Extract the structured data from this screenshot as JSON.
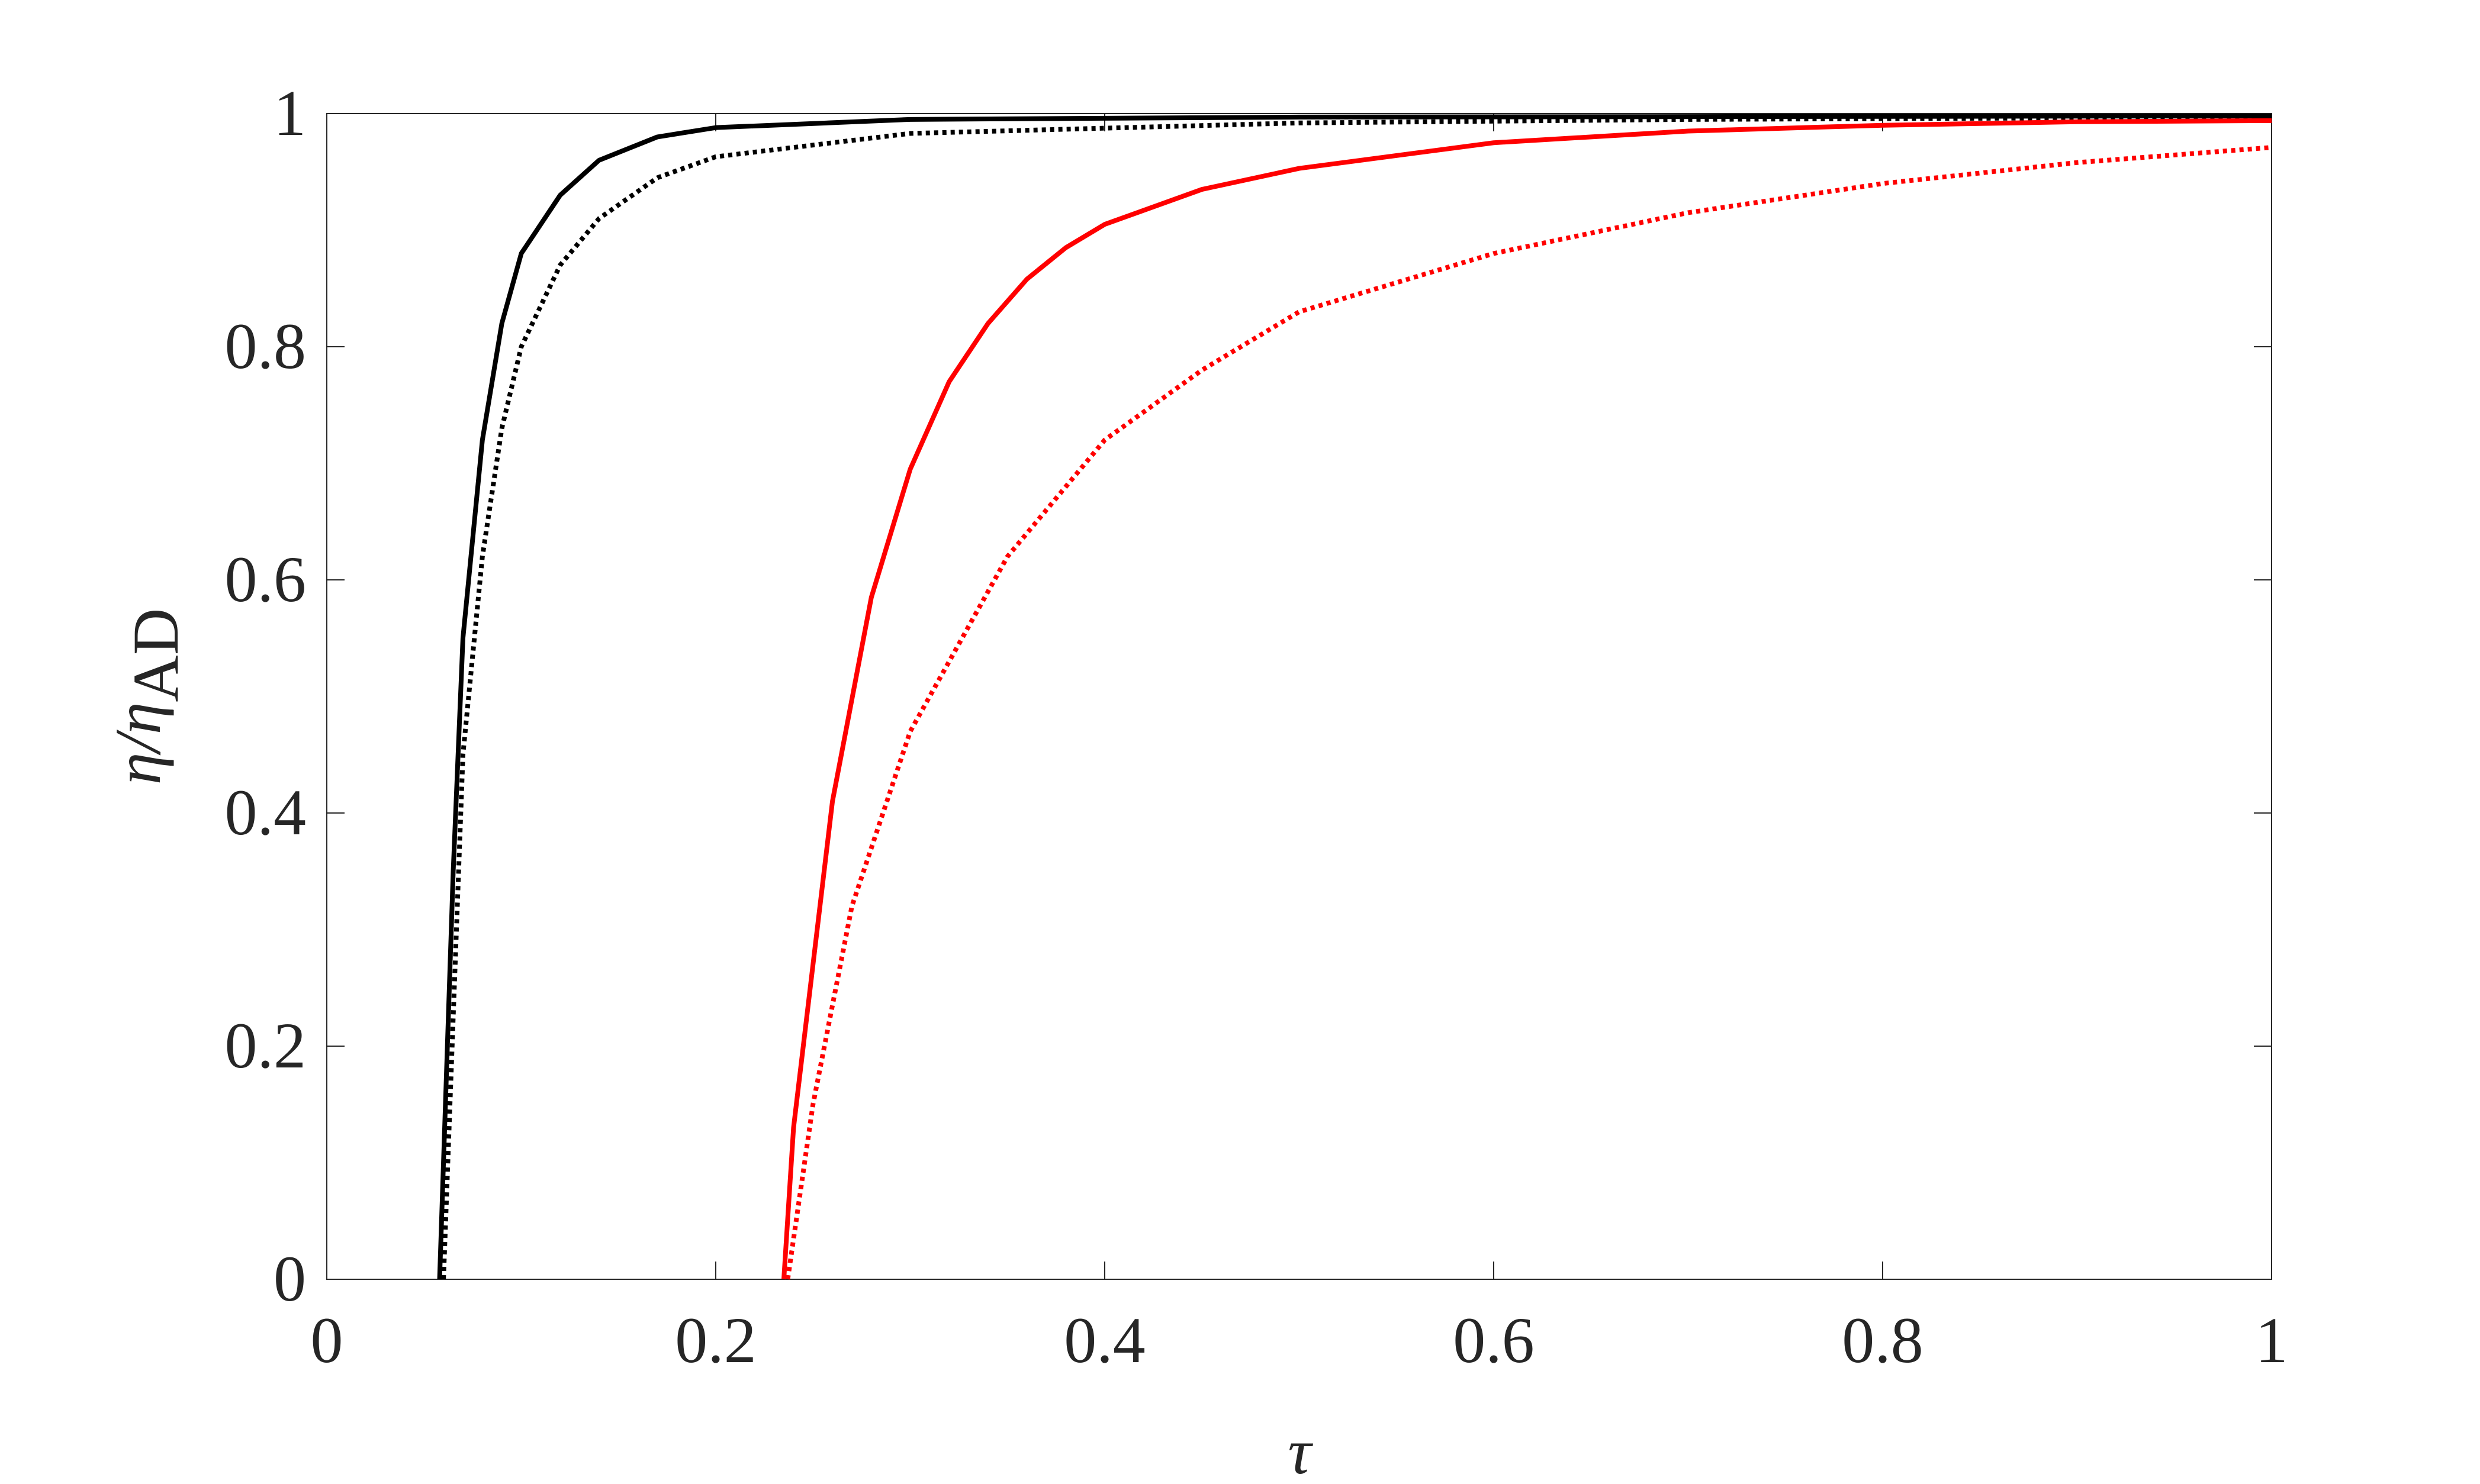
{
  "chart_data": {
    "type": "line",
    "xlabel": "τ",
    "ylabel": "η/η",
    "ylabel_subscript": "AD",
    "xlim": [
      0,
      1
    ],
    "ylim": [
      0,
      1
    ],
    "xticks": [
      0,
      0.2,
      0.4,
      0.6,
      0.8,
      1
    ],
    "yticks": [
      0,
      0.2,
      0.4,
      0.6,
      0.8,
      1
    ],
    "grid": false,
    "series": [
      {
        "color": "#000000",
        "style": "solid",
        "x": [
          0.058,
          0.065,
          0.07,
          0.08,
          0.09,
          0.1,
          0.12,
          0.14,
          0.17,
          0.2,
          0.3,
          0.5,
          1
        ],
        "values": [
          0,
          0.35,
          0.55,
          0.72,
          0.82,
          0.88,
          0.93,
          0.96,
          0.98,
          0.988,
          0.995,
          0.997,
          0.998
        ]
      },
      {
        "color": "#000000",
        "style": "dotted",
        "x": [
          0.06,
          0.07,
          0.08,
          0.09,
          0.1,
          0.12,
          0.14,
          0.17,
          0.2,
          0.3,
          0.5,
          0.7,
          1
        ],
        "values": [
          0,
          0.45,
          0.62,
          0.73,
          0.8,
          0.87,
          0.91,
          0.945,
          0.963,
          0.983,
          0.992,
          0.995,
          0.997
        ]
      },
      {
        "color": "#ff0000",
        "style": "solid",
        "x": [
          0.235,
          0.24,
          0.26,
          0.28,
          0.3,
          0.32,
          0.34,
          0.36,
          0.38,
          0.4,
          0.45,
          0.5,
          0.6,
          0.7,
          0.8,
          0.9,
          1
        ],
        "values": [
          0,
          0.13,
          0.41,
          0.585,
          0.695,
          0.77,
          0.82,
          0.858,
          0.885,
          0.905,
          0.935,
          0.953,
          0.975,
          0.985,
          0.99,
          0.993,
          0.994
        ]
      },
      {
        "color": "#ff0000",
        "style": "dotted",
        "x": [
          0.237,
          0.25,
          0.27,
          0.3,
          0.35,
          0.4,
          0.45,
          0.5,
          0.6,
          0.7,
          0.8,
          0.9,
          1
        ],
        "values": [
          0,
          0.15,
          0.32,
          0.47,
          0.62,
          0.72,
          0.78,
          0.83,
          0.88,
          0.915,
          0.94,
          0.958,
          0.971
        ]
      }
    ]
  }
}
